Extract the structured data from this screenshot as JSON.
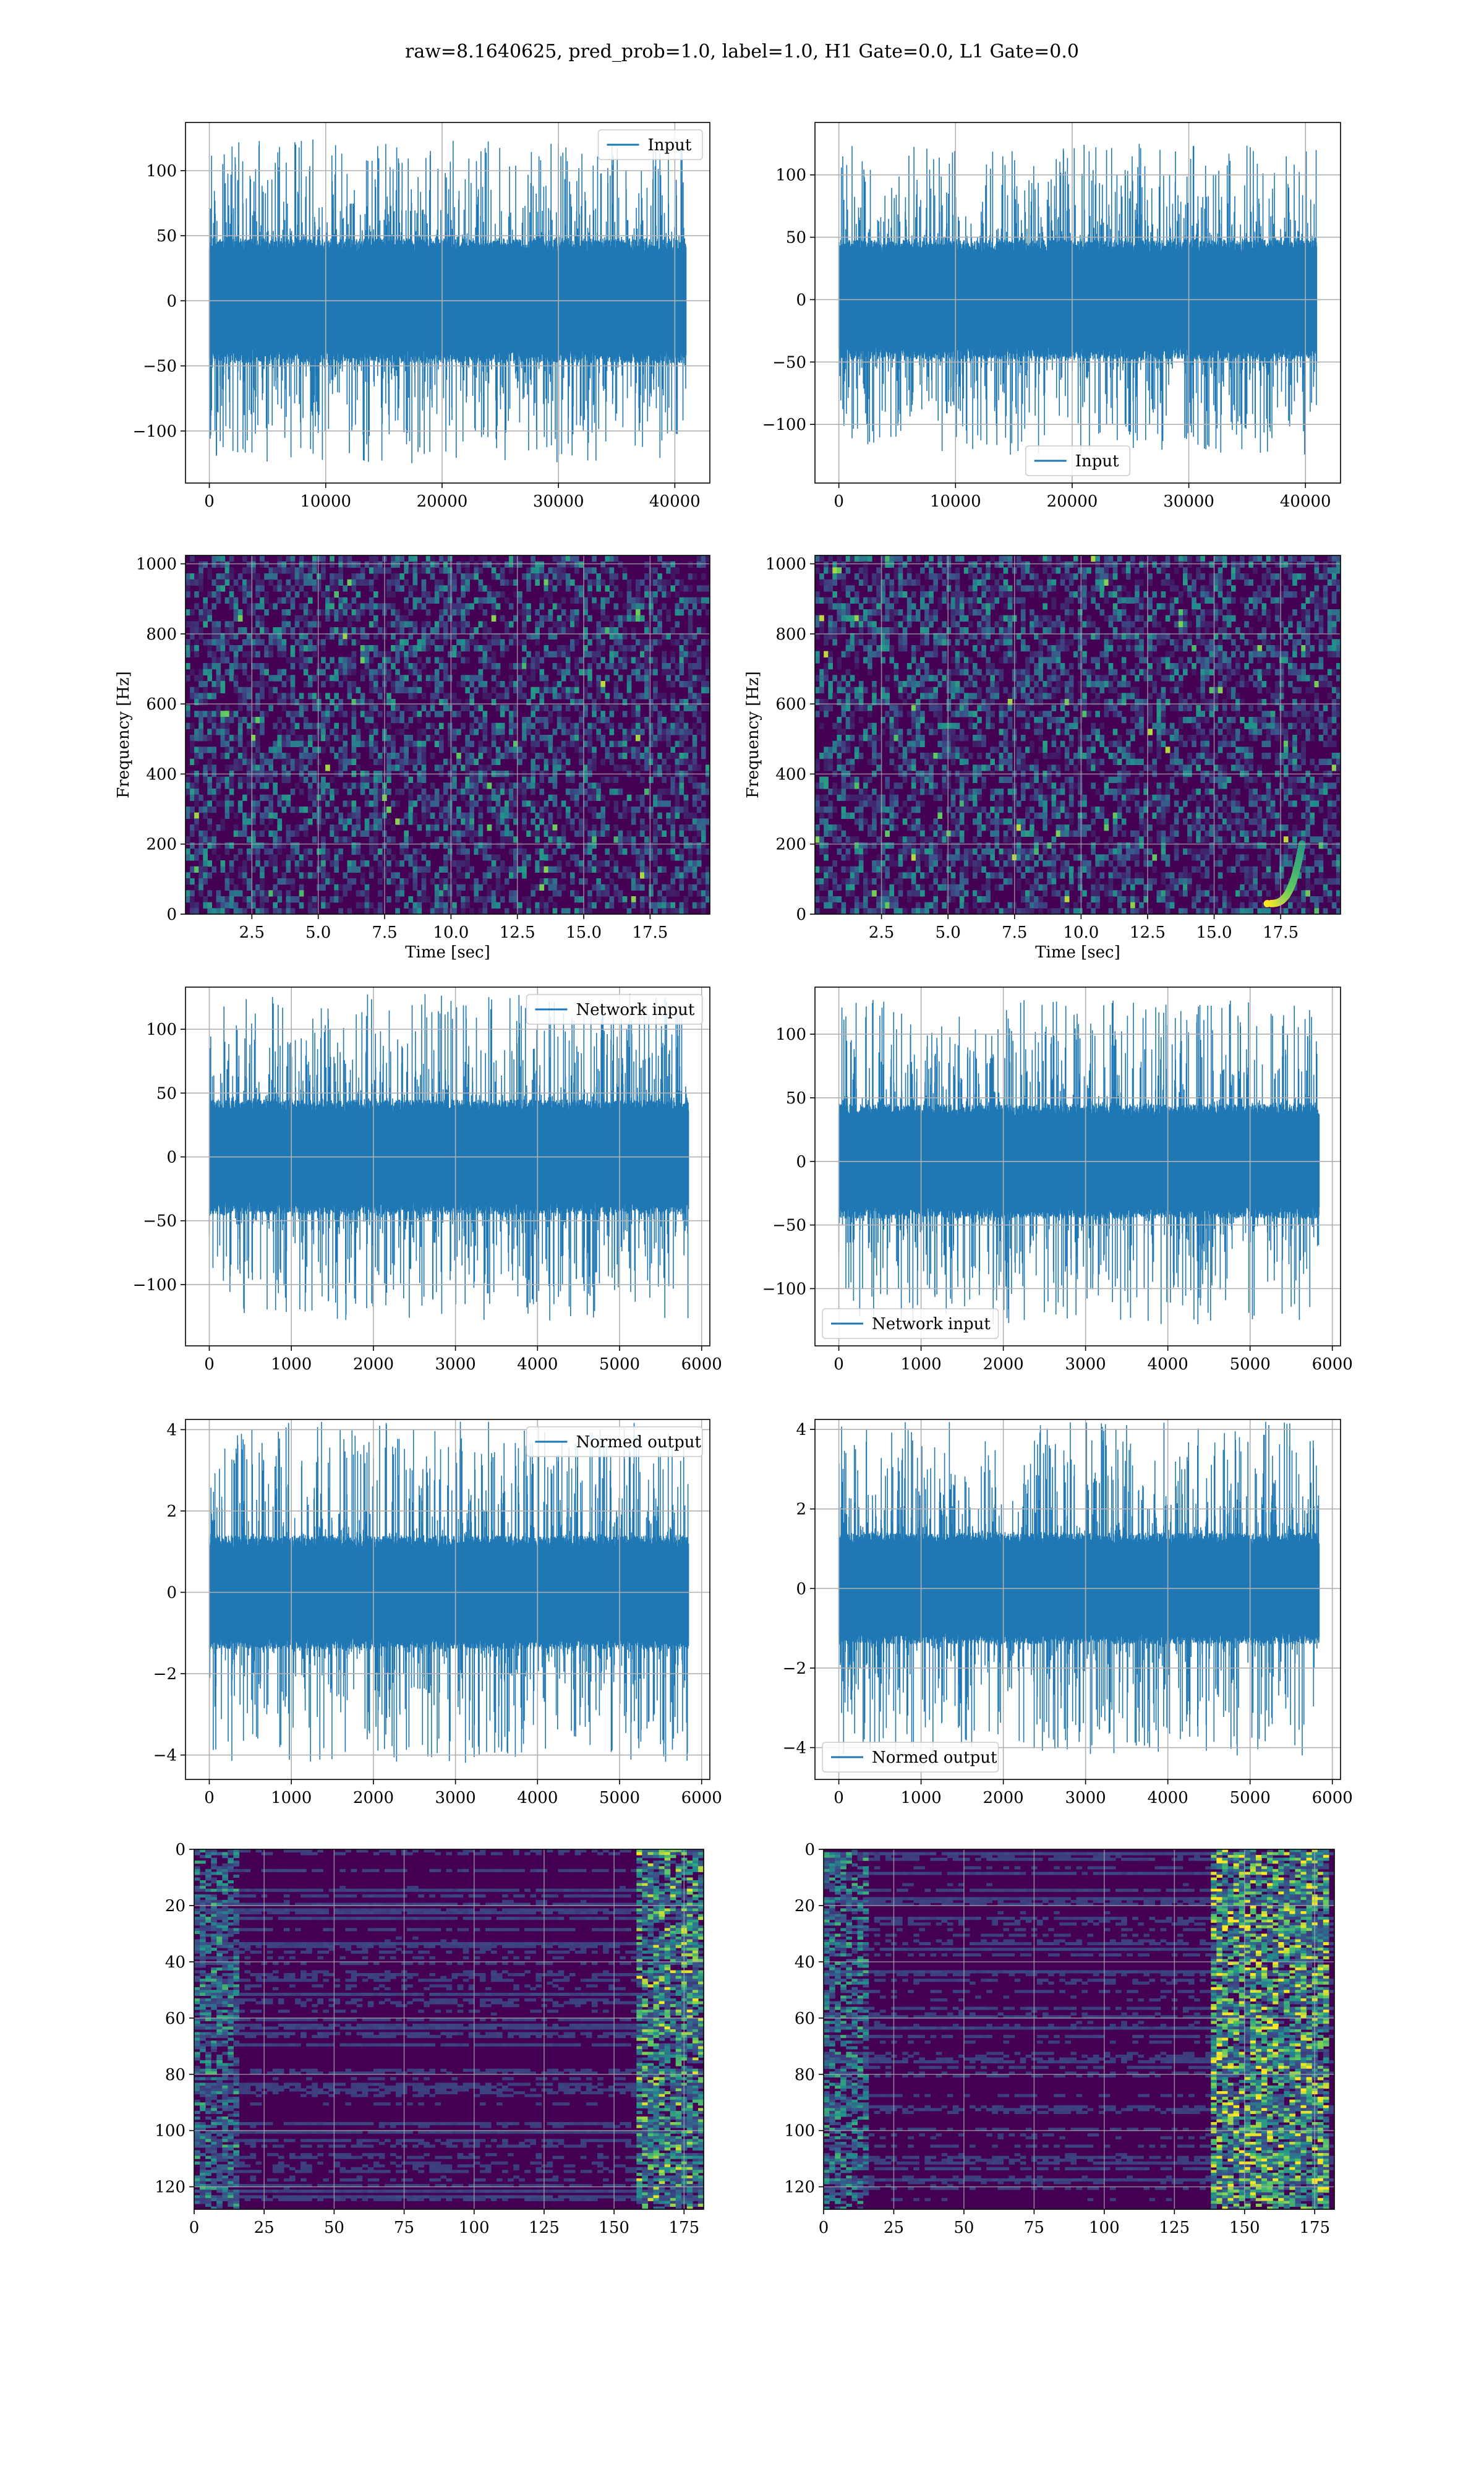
{
  "figure": {
    "title": "raw=8.1640625, pred_prob=1.0, label=1.0, H1 Gate=0.0, L1 Gate=0.0"
  },
  "colors": {
    "series": "#1f77b4",
    "grid": "#b0b0b0",
    "viridis_low": "#440154",
    "viridis_mid": "#3b528b",
    "viridis_teal": "#21918c",
    "viridis_green": "#5ec962",
    "viridis_high": "#fde725"
  },
  "chart_data": [
    {
      "id": "raw-h1",
      "type": "line",
      "legend": "Input",
      "legend_loc": "upper right",
      "xlim": [
        -2048,
        43008
      ],
      "ylim": [
        -140,
        137
      ],
      "xticks": [
        0,
        10000,
        20000,
        30000,
        40000
      ],
      "xtick_labels": [
        "0",
        "10000",
        "20000",
        "30000",
        "40000"
      ],
      "yticks": [
        100,
        50,
        0,
        -50,
        -100
      ],
      "ytick_labels": [
        "100",
        "50",
        "0",
        "−50",
        "−100"
      ],
      "x_range": [
        0,
        40960
      ],
      "core_amplitude": 48,
      "spike_max": 125,
      "grid": true
    },
    {
      "id": "raw-l1",
      "type": "line",
      "legend": "Input",
      "legend_loc": "lower center",
      "xlim": [
        -2048,
        43008
      ],
      "ylim": [
        -147,
        142
      ],
      "xticks": [
        0,
        10000,
        20000,
        30000,
        40000
      ],
      "xtick_labels": [
        "0",
        "10000",
        "20000",
        "30000",
        "40000"
      ],
      "yticks": [
        100,
        50,
        0,
        -50,
        -100
      ],
      "ytick_labels": [
        "100",
        "50",
        "0",
        "−50",
        "−100"
      ],
      "x_range": [
        0,
        40960
      ],
      "core_amplitude": 48,
      "spike_max": 125,
      "grid": true
    },
    {
      "id": "spec-h1",
      "type": "heatmap",
      "xlabel": "Time [sec]",
      "ylabel": "Frequency [Hz]",
      "xlim": [
        0,
        19.75
      ],
      "ylim": [
        0,
        1024
      ],
      "xticks": [
        2.5,
        5.0,
        7.5,
        10.0,
        12.5,
        15.0,
        17.5
      ],
      "xtick_labels": [
        "2.5",
        "5.0",
        "7.5",
        "10.0",
        "12.5",
        "15.0",
        "17.5"
      ],
      "yticks": [
        0,
        200,
        400,
        600,
        800,
        1000
      ],
      "ytick_labels": [
        "0",
        "200",
        "400",
        "600",
        "800",
        "1000"
      ],
      "grid": true
    },
    {
      "id": "spec-l1",
      "type": "heatmap",
      "xlabel": "Time [sec]",
      "ylabel": "Frequency [Hz]",
      "xlim": [
        0,
        19.75
      ],
      "ylim": [
        0,
        1024
      ],
      "xticks": [
        2.5,
        5.0,
        7.5,
        10.0,
        12.5,
        15.0,
        17.5
      ],
      "xtick_labels": [
        "2.5",
        "5.0",
        "7.5",
        "10.0",
        "12.5",
        "15.0",
        "17.5"
      ],
      "yticks": [
        0,
        200,
        400,
        600,
        800,
        1000
      ],
      "ytick_labels": [
        "0",
        "200",
        "400",
        "600",
        "800",
        "1000"
      ],
      "chirp": {
        "t_start": 17.0,
        "t_end": 18.3,
        "f_start": 30,
        "f_end": 200
      },
      "grid": true
    },
    {
      "id": "net-h1",
      "type": "line",
      "legend": "Network input",
      "legend_loc": "upper right",
      "xlim": [
        -290,
        6100
      ],
      "ylim": [
        -148,
        133
      ],
      "xticks": [
        0,
        1000,
        2000,
        3000,
        4000,
        5000,
        6000
      ],
      "xtick_labels": [
        "0",
        "1000",
        "2000",
        "3000",
        "4000",
        "5000",
        "6000"
      ],
      "yticks": [
        100,
        50,
        0,
        -50,
        -100
      ],
      "ytick_labels": [
        "100",
        "50",
        "0",
        "−50",
        "−100"
      ],
      "x_range": [
        0,
        5840
      ],
      "core_amplitude": 45,
      "spike_max": 128,
      "grid": true
    },
    {
      "id": "net-l1",
      "type": "line",
      "legend": "Network input",
      "legend_loc": "lower left",
      "xlim": [
        -290,
        6100
      ],
      "ylim": [
        -145,
        137
      ],
      "xticks": [
        0,
        1000,
        2000,
        3000,
        4000,
        5000,
        6000
      ],
      "xtick_labels": [
        "0",
        "1000",
        "2000",
        "3000",
        "4000",
        "5000",
        "6000"
      ],
      "yticks": [
        100,
        50,
        0,
        -50,
        -100
      ],
      "ytick_labels": [
        "100",
        "50",
        "0",
        "−50",
        "−100"
      ],
      "x_range": [
        0,
        5840
      ],
      "core_amplitude": 45,
      "spike_max": 128,
      "grid": true
    },
    {
      "id": "norm-h1",
      "type": "line",
      "legend": "Normed output",
      "legend_loc": "upper right",
      "xlim": [
        -290,
        6100
      ],
      "ylim": [
        -4.6,
        4.25
      ],
      "xticks": [
        0,
        1000,
        2000,
        3000,
        4000,
        5000,
        6000
      ],
      "xtick_labels": [
        "0",
        "1000",
        "2000",
        "3000",
        "4000",
        "5000",
        "6000"
      ],
      "yticks": [
        4,
        2,
        0,
        -2,
        -4
      ],
      "ytick_labels": [
        "4",
        "2",
        "0",
        "−2",
        "−4"
      ],
      "x_range": [
        0,
        5840
      ],
      "core_amplitude": 1.4,
      "spike_max": 4.2,
      "grid": true
    },
    {
      "id": "norm-l1",
      "type": "line",
      "legend": "Normed output",
      "legend_loc": "lower left",
      "xlim": [
        -290,
        6100
      ],
      "ylim": [
        -4.8,
        4.25
      ],
      "xticks": [
        0,
        1000,
        2000,
        3000,
        4000,
        5000,
        6000
      ],
      "xtick_labels": [
        "0",
        "1000",
        "2000",
        "3000",
        "4000",
        "5000",
        "6000"
      ],
      "yticks": [
        4,
        2,
        0,
        -2,
        -4
      ],
      "ytick_labels": [
        "4",
        "2",
        "0",
        "−2",
        "−4"
      ],
      "x_range": [
        0,
        5840
      ],
      "core_amplitude": 1.4,
      "spike_max": 4.2,
      "grid": true
    },
    {
      "id": "feat-h1",
      "type": "heatmap",
      "xlim": [
        0,
        182
      ],
      "ylim": [
        128,
        0
      ],
      "xticks": [
        0,
        25,
        50,
        75,
        100,
        125,
        150,
        175
      ],
      "xtick_labels": [
        "0",
        "25",
        "50",
        "75",
        "100",
        "125",
        "150",
        "175"
      ],
      "yticks": [
        0,
        20,
        40,
        60,
        80,
        100,
        120
      ],
      "ytick_labels": [
        "0",
        "20",
        "40",
        "60",
        "80",
        "100",
        "120"
      ],
      "grid": true
    },
    {
      "id": "feat-l1",
      "type": "heatmap",
      "xlim": [
        0,
        182
      ],
      "ylim": [
        128,
        0
      ],
      "xticks": [
        0,
        25,
        50,
        75,
        100,
        125,
        150,
        175
      ],
      "xtick_labels": [
        "0",
        "25",
        "50",
        "75",
        "100",
        "125",
        "150",
        "175"
      ],
      "yticks": [
        0,
        20,
        40,
        60,
        80,
        100,
        120
      ],
      "ytick_labels": [
        "0",
        "20",
        "40",
        "60",
        "80",
        "100",
        "120"
      ],
      "grid": true
    }
  ]
}
